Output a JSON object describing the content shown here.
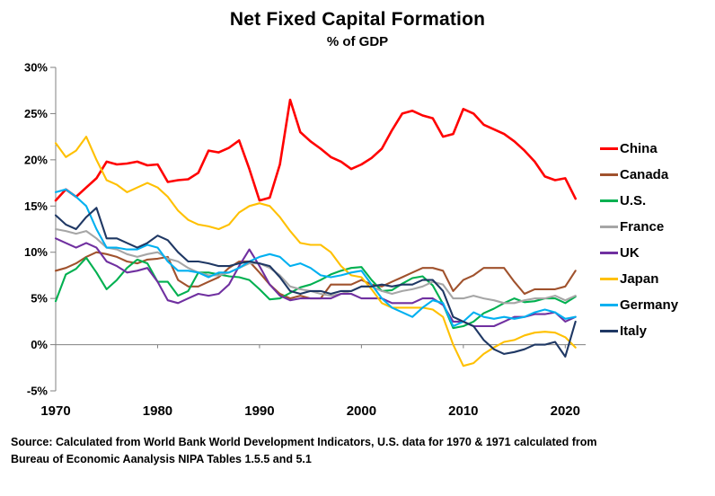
{
  "chart_data": {
    "type": "line",
    "title": "Net Fixed Capital Formation",
    "subtitle": "% of GDP",
    "xlabel": "",
    "ylabel": "",
    "grid": false,
    "zero_line": true,
    "legend_position": "right",
    "xlim": [
      1970,
      2022
    ],
    "ylim": [
      -5,
      30
    ],
    "x_ticks": [
      1970,
      1980,
      1990,
      2000,
      2010,
      2020
    ],
    "y_ticks": [
      30,
      25,
      20,
      15,
      10,
      5,
      0,
      -5
    ],
    "y_tick_suffix": "%",
    "x": [
      1970,
      1971,
      1972,
      1973,
      1974,
      1975,
      1976,
      1977,
      1978,
      1979,
      1980,
      1981,
      1982,
      1983,
      1984,
      1985,
      1986,
      1987,
      1988,
      1989,
      1990,
      1991,
      1992,
      1993,
      1994,
      1995,
      1996,
      1997,
      1998,
      1999,
      2000,
      2001,
      2002,
      2003,
      2004,
      2005,
      2006,
      2007,
      2008,
      2009,
      2010,
      2011,
      2012,
      2013,
      2014,
      2015,
      2016,
      2017,
      2018,
      2019,
      2020,
      2021
    ],
    "series": [
      {
        "name": "China",
        "color": "#FF0000",
        "values": [
          15.6,
          16.8,
          16.0,
          17.0,
          18.0,
          19.8,
          19.5,
          19.6,
          19.8,
          19.4,
          19.5,
          17.6,
          17.8,
          17.9,
          18.6,
          21.0,
          20.8,
          21.3,
          22.1,
          19.0,
          15.6,
          15.9,
          19.5,
          26.5,
          23.0,
          22.0,
          21.2,
          20.3,
          19.8,
          19.0,
          19.5,
          20.2,
          21.2,
          23.2,
          25.0,
          25.3,
          24.8,
          24.5,
          22.5,
          22.8,
          25.5,
          25.0,
          23.8,
          23.3,
          22.8,
          22.0,
          21.0,
          19.8,
          18.2,
          17.8,
          18.0,
          15.8
        ]
      },
      {
        "name": "Canada",
        "color": "#A0522D",
        "values": [
          8.0,
          8.3,
          8.8,
          9.5,
          10.0,
          9.8,
          9.5,
          9.0,
          8.8,
          9.2,
          9.3,
          9.5,
          7.0,
          6.3,
          6.3,
          6.8,
          7.3,
          8.3,
          9.0,
          9.0,
          7.8,
          6.5,
          5.5,
          5.0,
          5.3,
          5.0,
          5.0,
          6.5,
          6.5,
          6.5,
          7.0,
          6.5,
          6.3,
          6.8,
          7.3,
          7.8,
          8.3,
          8.3,
          8.0,
          5.8,
          7.0,
          7.5,
          8.3,
          8.3,
          8.3,
          6.8,
          5.5,
          6.0,
          6.0,
          6.0,
          6.3,
          8.0
        ]
      },
      {
        "name": "U.S.",
        "color": "#00B050",
        "values": [
          4.7,
          7.6,
          8.2,
          9.4,
          7.8,
          6.0,
          7.0,
          8.3,
          9.2,
          8.8,
          6.8,
          6.8,
          5.3,
          5.8,
          7.8,
          7.8,
          7.6,
          7.4,
          7.3,
          7.0,
          6.0,
          4.9,
          5.0,
          5.6,
          6.2,
          6.5,
          7.0,
          7.6,
          8.0,
          8.3,
          8.4,
          7.0,
          5.8,
          5.9,
          6.6,
          7.2,
          7.4,
          6.4,
          4.4,
          1.8,
          2.0,
          2.5,
          3.4,
          3.9,
          4.5,
          5.0,
          4.6,
          4.7,
          5.0,
          5.0,
          4.5,
          5.2
        ]
      },
      {
        "name": "France",
        "color": "#A6A6A6",
        "values": [
          12.5,
          12.3,
          12.0,
          12.3,
          11.5,
          10.5,
          10.3,
          9.8,
          9.5,
          9.8,
          10.0,
          9.3,
          9.0,
          8.3,
          7.8,
          7.5,
          7.5,
          7.8,
          8.3,
          8.8,
          8.8,
          8.3,
          7.5,
          6.3,
          6.0,
          5.8,
          5.5,
          5.3,
          5.5,
          5.8,
          6.3,
          6.3,
          5.8,
          5.5,
          5.8,
          6.0,
          6.3,
          6.8,
          6.5,
          5.0,
          5.0,
          5.3,
          5.0,
          4.8,
          4.5,
          4.5,
          4.8,
          5.0,
          5.0,
          5.3,
          4.8,
          5.3
        ]
      },
      {
        "name": "UK",
        "color": "#7030A0",
        "values": [
          11.5,
          11.0,
          10.5,
          11.0,
          10.5,
          9.0,
          8.5,
          7.8,
          8.0,
          8.3,
          6.8,
          4.8,
          4.5,
          5.0,
          5.5,
          5.3,
          5.5,
          6.5,
          8.5,
          10.3,
          8.5,
          6.5,
          5.3,
          4.8,
          5.0,
          5.0,
          5.0,
          5.0,
          5.5,
          5.5,
          5.0,
          5.0,
          5.0,
          4.5,
          4.5,
          4.5,
          5.0,
          5.0,
          4.3,
          2.5,
          2.5,
          2.0,
          2.0,
          2.0,
          2.5,
          3.0,
          3.0,
          3.3,
          3.3,
          3.5,
          2.5,
          3.0
        ]
      },
      {
        "name": "Japan",
        "color": "#FFC000",
        "values": [
          21.8,
          20.3,
          21.0,
          22.5,
          20.0,
          17.8,
          17.3,
          16.5,
          17.0,
          17.5,
          17.0,
          16.0,
          14.5,
          13.5,
          13.0,
          12.8,
          12.5,
          13.0,
          14.3,
          15.0,
          15.3,
          15.0,
          13.8,
          12.3,
          11.0,
          10.8,
          10.8,
          10.0,
          8.5,
          7.5,
          7.3,
          6.0,
          4.5,
          4.0,
          4.0,
          4.0,
          4.0,
          3.8,
          3.0,
          0.0,
          -2.3,
          -2.0,
          -1.0,
          -0.3,
          0.3,
          0.5,
          1.0,
          1.3,
          1.4,
          1.3,
          0.8,
          -0.3
        ]
      },
      {
        "name": "Germany",
        "color": "#00B0F0",
        "values": [
          16.5,
          16.8,
          16.0,
          15.0,
          12.5,
          10.5,
          10.5,
          10.3,
          10.3,
          10.8,
          10.5,
          9.0,
          8.0,
          8.0,
          7.8,
          7.3,
          7.8,
          7.8,
          8.3,
          9.0,
          9.5,
          9.8,
          9.5,
          8.5,
          8.8,
          8.3,
          7.5,
          7.3,
          7.5,
          7.8,
          8.0,
          6.5,
          5.0,
          4.0,
          3.5,
          3.0,
          4.0,
          4.8,
          4.5,
          2.0,
          2.5,
          3.5,
          3.0,
          2.8,
          3.0,
          2.8,
          3.0,
          3.5,
          3.8,
          3.5,
          2.8,
          3.0
        ]
      },
      {
        "name": "Italy",
        "color": "#1F3864",
        "values": [
          14.0,
          13.0,
          12.5,
          13.8,
          14.8,
          11.5,
          11.5,
          11.0,
          10.5,
          11.0,
          11.8,
          11.3,
          10.0,
          9.0,
          9.0,
          8.8,
          8.5,
          8.5,
          8.8,
          9.0,
          8.8,
          8.5,
          7.3,
          5.8,
          5.5,
          5.8,
          5.8,
          5.5,
          5.8,
          5.8,
          6.3,
          6.3,
          6.5,
          6.3,
          6.5,
          6.5,
          7.0,
          7.0,
          5.8,
          3.0,
          2.5,
          2.0,
          0.5,
          -0.5,
          -1.0,
          -0.8,
          -0.5,
          0.0,
          0.0,
          0.3,
          -1.3,
          2.5
        ]
      }
    ]
  },
  "footer": {
    "source_line1": "Source:  Calculated from World Bank World Development Indicators, U.S. data for 1970 & 1971 calculated from",
    "source_line2": "Bureau of Economic Aanalysis NIPA Tables 1.5.5 and 5.1"
  }
}
